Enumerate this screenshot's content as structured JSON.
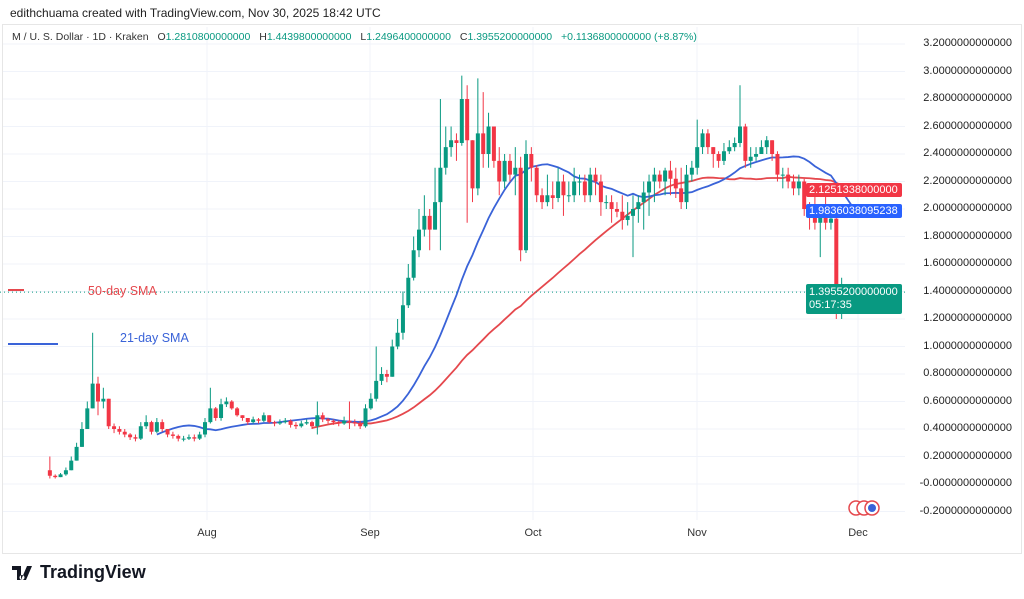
{
  "header": {
    "credit": "edithchuama created with TradingView.com, Nov 30, 2025 18:42 UTC"
  },
  "legend": {
    "symbol": "M / U. S. Dollar · 1D · Kraken",
    "o_label": "O",
    "o": "1.2810800000000",
    "h_label": "H",
    "h": "1.4439800000000",
    "l_label": "L",
    "l": "1.2496400000000",
    "c_label": "C",
    "c": "1.3955200000000",
    "change": "+0.1136800000000 (+8.87%)"
  },
  "price_axis": {
    "labels": [
      "3.2000000000000",
      "3.0000000000000",
      "2.8000000000000",
      "2.6000000000000",
      "2.4000000000000",
      "2.2000000000000",
      "2.0000000000000",
      "1.8000000000000",
      "1.6000000000000",
      "1.4000000000000",
      "1.2000000000000",
      "1.0000000000000",
      "0.8000000000000",
      "0.6000000000000",
      "0.4000000000000",
      "0.2000000000000",
      "-0.0000000000000",
      "-0.2000000000000"
    ],
    "sma50_tag": "2.1251338000000",
    "sma21_tag": "1.9836038095238",
    "last_price_tag": "1.3955200000000",
    "countdown": "05:17:35"
  },
  "time_axis": {
    "labels": [
      "Aug",
      "Sep",
      "Oct",
      "Nov",
      "Dec"
    ]
  },
  "annotations": {
    "sma50": "50-day SMA",
    "sma21": "21-day SMA"
  },
  "colors": {
    "up": "#089981",
    "down": "#f23645",
    "sma50": "#e5484d",
    "sma21": "#3a63d8",
    "last": "#089981"
  },
  "logo": "TradingView",
  "chart_data": {
    "type": "candlestick",
    "first_date": "Jul 3",
    "last_date": "Nov 30",
    "ylim": [
      -0.2,
      3.2
    ],
    "grid": true,
    "first_open": 0.1,
    "close": [
      0.06,
      0.05,
      0.07,
      0.1,
      0.17,
      0.27,
      0.4,
      0.55,
      0.73,
      0.6,
      0.62,
      0.42,
      0.4,
      0.38,
      0.36,
      0.34,
      0.33,
      0.42,
      0.45,
      0.38,
      0.45,
      0.4,
      0.36,
      0.35,
      0.33,
      0.33,
      0.34,
      0.33,
      0.36,
      0.45,
      0.55,
      0.48,
      0.58,
      0.6,
      0.55,
      0.5,
      0.48,
      0.45,
      0.47,
      0.46,
      0.5,
      0.45,
      0.44,
      0.45,
      0.46,
      0.43,
      0.42,
      0.44,
      0.45,
      0.42,
      0.5,
      0.47,
      0.46,
      0.45,
      0.44,
      0.46,
      0.45,
      0.44,
      0.42,
      0.55,
      0.62,
      0.75,
      0.8,
      0.78,
      1.0,
      1.1,
      1.3,
      1.5,
      1.7,
      1.85,
      1.95,
      1.85,
      2.05,
      2.3,
      2.45,
      2.5,
      2.48,
      2.8,
      2.5,
      2.15,
      2.55,
      2.4,
      2.6,
      2.35,
      2.2,
      2.35,
      2.25,
      2.3,
      1.7,
      2.4,
      2.3,
      2.1,
      2.05,
      2.1,
      2.08,
      2.2,
      2.1,
      2.1,
      2.2,
      2.2,
      2.1,
      2.25,
      2.2,
      2.05,
      2.05,
      2.0,
      1.98,
      1.92,
      1.95,
      2.0,
      2.05,
      2.12,
      2.2,
      2.25,
      2.2,
      2.28,
      2.22,
      2.15,
      2.05,
      2.25,
      2.3,
      2.45,
      2.55,
      2.45,
      2.4,
      2.35,
      2.42,
      2.45,
      2.48,
      2.6,
      2.35,
      2.38,
      2.4,
      2.45,
      2.5,
      2.4,
      2.25,
      2.25,
      2.2,
      2.15,
      2.2,
      2.0,
      1.95,
      1.9,
      1.95,
      1.9,
      1.93,
      1.25,
      1.3,
      1.28,
      1.3955
    ],
    "high": [
      0.2,
      0.07,
      0.08,
      0.12,
      0.2,
      0.3,
      0.45,
      0.6,
      1.1,
      0.78,
      0.7,
      0.62,
      0.44,
      0.42,
      0.4,
      0.37,
      0.36,
      0.45,
      0.5,
      0.46,
      0.48,
      0.47,
      0.4,
      0.38,
      0.36,
      0.35,
      0.36,
      0.36,
      0.38,
      0.48,
      0.7,
      0.56,
      0.62,
      0.63,
      0.61,
      0.56,
      0.5,
      0.48,
      0.49,
      0.48,
      0.52,
      0.5,
      0.46,
      0.47,
      0.48,
      0.47,
      0.45,
      0.46,
      0.47,
      0.46,
      0.6,
      0.52,
      0.48,
      0.47,
      0.46,
      0.49,
      0.6,
      0.47,
      0.46,
      0.58,
      0.66,
      1.0,
      0.85,
      0.83,
      1.05,
      1.2,
      1.4,
      1.6,
      1.8,
      2.0,
      2.1,
      2.0,
      2.3,
      2.8,
      2.6,
      2.6,
      2.55,
      2.97,
      2.9,
      2.5,
      2.95,
      2.85,
      2.7,
      2.6,
      2.45,
      2.4,
      2.4,
      2.45,
      2.38,
      2.5,
      2.45,
      2.32,
      2.15,
      2.25,
      2.2,
      2.3,
      2.25,
      2.2,
      2.3,
      2.25,
      2.25,
      2.3,
      2.3,
      2.25,
      2.1,
      2.1,
      2.05,
      2.1,
      2.05,
      2.1,
      2.1,
      2.2,
      2.25,
      2.3,
      2.28,
      2.3,
      2.35,
      2.3,
      2.3,
      2.32,
      2.35,
      2.65,
      2.58,
      2.58,
      2.45,
      2.42,
      2.48,
      2.5,
      2.52,
      2.9,
      2.62,
      2.45,
      2.45,
      2.5,
      2.53,
      2.5,
      2.42,
      2.3,
      2.3,
      2.25,
      2.25,
      2.22,
      2.05,
      2.1,
      2.0,
      2.1,
      2.0,
      1.95,
      1.5,
      1.4,
      1.44398
    ],
    "low": [
      0.04,
      0.04,
      0.05,
      0.06,
      0.1,
      0.17,
      0.27,
      0.4,
      0.55,
      0.5,
      0.55,
      0.4,
      0.37,
      0.36,
      0.34,
      0.32,
      0.31,
      0.32,
      0.4,
      0.36,
      0.37,
      0.38,
      0.34,
      0.33,
      0.31,
      0.31,
      0.32,
      0.31,
      0.32,
      0.34,
      0.44,
      0.46,
      0.46,
      0.56,
      0.54,
      0.49,
      0.46,
      0.43,
      0.44,
      0.44,
      0.45,
      0.44,
      0.42,
      0.43,
      0.44,
      0.41,
      0.4,
      0.41,
      0.43,
      0.4,
      0.36,
      0.45,
      0.44,
      0.43,
      0.42,
      0.43,
      0.4,
      0.42,
      0.4,
      0.41,
      0.54,
      0.6,
      0.72,
      0.74,
      0.78,
      0.98,
      1.05,
      1.28,
      1.48,
      1.65,
      1.8,
      1.7,
      1.85,
      1.7,
      2.25,
      2.38,
      2.35,
      2.46,
      1.9,
      2.05,
      2.1,
      2.3,
      2.3,
      2.3,
      2.1,
      2.15,
      2.2,
      2.1,
      1.62,
      1.68,
      2.2,
      2.05,
      2.0,
      2.02,
      2.0,
      2.05,
      1.95,
      2.05,
      2.05,
      2.1,
      2.05,
      2.05,
      2.1,
      1.95,
      2.0,
      1.9,
      1.94,
      1.85,
      1.88,
      1.65,
      1.9,
      1.85,
      1.95,
      2.05,
      2.15,
      2.1,
      2.1,
      2.08,
      2.0,
      2.0,
      2.2,
      2.25,
      2.4,
      2.4,
      2.3,
      2.3,
      2.32,
      2.4,
      2.42,
      2.45,
      2.3,
      2.3,
      2.35,
      2.4,
      2.4,
      2.35,
      2.2,
      2.15,
      2.15,
      2.1,
      2.1,
      1.95,
      1.85,
      1.85,
      1.65,
      1.85,
      1.85,
      1.2,
      1.2,
      1.25,
      1.24964
    ],
    "overlays": [
      {
        "name": "50-day SMA",
        "period": 50
      },
      {
        "name": "21-day SMA",
        "period": 21
      }
    ]
  }
}
